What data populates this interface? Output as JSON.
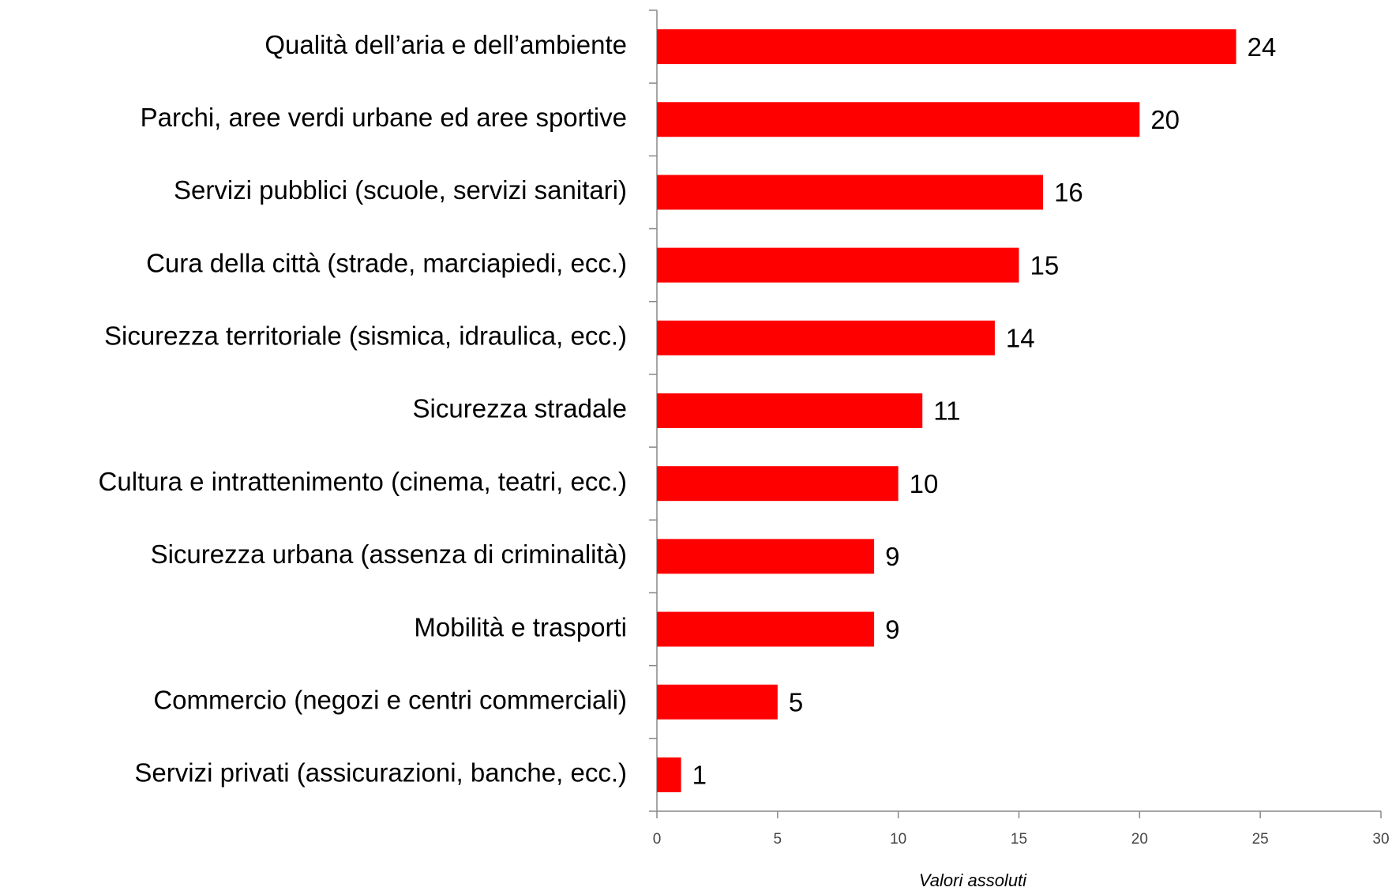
{
  "chart_data": {
    "type": "bar",
    "orientation": "horizontal",
    "categories": [
      "Qualità dell’aria e dell’ambiente",
      "Parchi, aree verdi urbane ed aree sportive",
      "Servizi pubblici (scuole, servizi sanitari)",
      "Cura della città (strade, marciapiedi, ecc.)",
      "Sicurezza territoriale (sismica, idraulica, ecc.)",
      "Sicurezza stradale",
      "Cultura e intrattenimento (cinema, teatri, ecc.)",
      "Sicurezza urbana (assenza di criminalità)",
      "Mobilità e trasporti",
      "Commercio (negozi e centri commerciali)",
      "Servizi privati (assicurazioni, banche, ecc.)"
    ],
    "values": [
      24,
      20,
      16,
      15,
      14,
      11,
      10,
      9,
      9,
      5,
      1
    ],
    "color": "#ff0000",
    "xlim": [
      0,
      30
    ],
    "xticks": [
      0,
      5,
      10,
      15,
      20,
      25,
      30
    ],
    "x_label": "Valori assoluti"
  }
}
